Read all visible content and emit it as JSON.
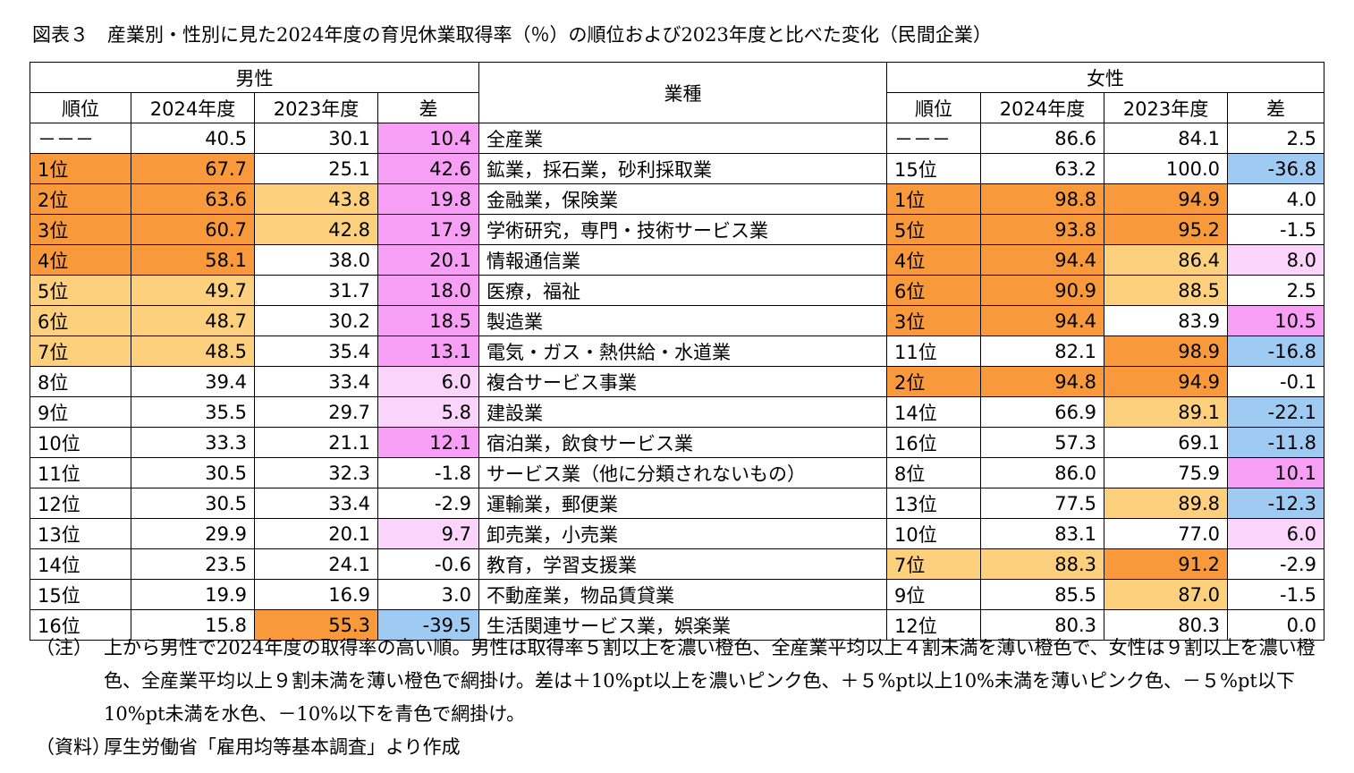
{
  "title": "図表３　産業別・性別に見た2024年度の育児休業取得率（％）の順位および2023年度と比べた変化（民間企業）",
  "headers": {
    "male": "男性",
    "female": "女性",
    "industry": "業種",
    "rank": "順位",
    "y2024": "2024年度",
    "y2023": "2023年度",
    "diff": "差"
  },
  "colors": {
    "dark": "#f89a3c",
    "light": "#fdd07e",
    "dpink": "#f79ef5",
    "lpink": "#fbd4fb",
    "lblue": "#c7e2f8",
    "blue": "#9fcbf2"
  },
  "rows": [
    {
      "m_rank": "－－－",
      "m_2024": "40.5",
      "m_2023": "30.1",
      "m_diff": "10.4",
      "industry": "全産業",
      "f_rank": "－－－",
      "f_2024": "86.6",
      "f_2023": "84.1",
      "f_diff": "2.5",
      "c": {
        "m_diff": "dpink"
      }
    },
    {
      "m_rank": "1位",
      "m_2024": "67.7",
      "m_2023": "25.1",
      "m_diff": "42.6",
      "industry": "鉱業，採石業，砂利採取業",
      "f_rank": "15位",
      "f_2024": "63.2",
      "f_2023": "100.0",
      "f_diff": "-36.8",
      "c": {
        "m_rank": "dark",
        "m_2024": "dark",
        "m_diff": "dpink",
        "f_diff": "blue"
      }
    },
    {
      "m_rank": "2位",
      "m_2024": "63.6",
      "m_2023": "43.8",
      "m_diff": "19.8",
      "industry": "金融業，保険業",
      "f_rank": "1位",
      "f_2024": "98.8",
      "f_2023": "94.9",
      "f_diff": "4.0",
      "c": {
        "m_rank": "dark",
        "m_2024": "dark",
        "m_2023": "light",
        "m_diff": "dpink",
        "f_rank": "dark",
        "f_2024": "dark",
        "f_2023": "dark"
      }
    },
    {
      "m_rank": "3位",
      "m_2024": "60.7",
      "m_2023": "42.8",
      "m_diff": "17.9",
      "industry": "学術研究，専門・技術サービス業",
      "f_rank": "5位",
      "f_2024": "93.8",
      "f_2023": "95.2",
      "f_diff": "-1.5",
      "c": {
        "m_rank": "dark",
        "m_2024": "dark",
        "m_2023": "light",
        "m_diff": "dpink",
        "f_rank": "dark",
        "f_2024": "dark",
        "f_2023": "dark"
      }
    },
    {
      "m_rank": "4位",
      "m_2024": "58.1",
      "m_2023": "38.0",
      "m_diff": "20.1",
      "industry": "情報通信業",
      "f_rank": "4位",
      "f_2024": "94.4",
      "f_2023": "86.4",
      "f_diff": "8.0",
      "c": {
        "m_rank": "dark",
        "m_2024": "dark",
        "m_diff": "dpink",
        "f_rank": "dark",
        "f_2024": "dark",
        "f_2023": "light",
        "f_diff": "lpink"
      }
    },
    {
      "m_rank": "5位",
      "m_2024": "49.7",
      "m_2023": "31.7",
      "m_diff": "18.0",
      "industry": "医療，福祉",
      "f_rank": "6位",
      "f_2024": "90.9",
      "f_2023": "88.5",
      "f_diff": "2.5",
      "c": {
        "m_rank": "light",
        "m_2024": "light",
        "m_diff": "dpink",
        "f_rank": "dark",
        "f_2024": "dark",
        "f_2023": "light"
      }
    },
    {
      "m_rank": "6位",
      "m_2024": "48.7",
      "m_2023": "30.2",
      "m_diff": "18.5",
      "industry": "製造業",
      "f_rank": "3位",
      "f_2024": "94.4",
      "f_2023": "83.9",
      "f_diff": "10.5",
      "c": {
        "m_rank": "light",
        "m_2024": "light",
        "m_diff": "dpink",
        "f_rank": "dark",
        "f_2024": "dark",
        "f_diff": "dpink"
      }
    },
    {
      "m_rank": "7位",
      "m_2024": "48.5",
      "m_2023": "35.4",
      "m_diff": "13.1",
      "industry": "電気・ガス・熱供給・水道業",
      "f_rank": "11位",
      "f_2024": "82.1",
      "f_2023": "98.9",
      "f_diff": "-16.8",
      "c": {
        "m_rank": "light",
        "m_2024": "light",
        "m_diff": "dpink",
        "f_2023": "dark",
        "f_diff": "blue"
      }
    },
    {
      "m_rank": "8位",
      "m_2024": "39.4",
      "m_2023": "33.4",
      "m_diff": "6.0",
      "industry": "複合サービス事業",
      "f_rank": "2位",
      "f_2024": "94.8",
      "f_2023": "94.9",
      "f_diff": "-0.1",
      "c": {
        "m_diff": "lpink",
        "f_rank": "dark",
        "f_2024": "dark",
        "f_2023": "dark"
      }
    },
    {
      "m_rank": "9位",
      "m_2024": "35.5",
      "m_2023": "29.7",
      "m_diff": "5.8",
      "industry": "建設業",
      "f_rank": "14位",
      "f_2024": "66.9",
      "f_2023": "89.1",
      "f_diff": "-22.1",
      "c": {
        "m_diff": "lpink",
        "f_2023": "light",
        "f_diff": "blue"
      }
    },
    {
      "m_rank": "10位",
      "m_2024": "33.3",
      "m_2023": "21.1",
      "m_diff": "12.1",
      "industry": "宿泊業，飲食サービス業",
      "f_rank": "16位",
      "f_2024": "57.3",
      "f_2023": "69.1",
      "f_diff": "-11.8",
      "c": {
        "m_diff": "dpink",
        "f_diff": "blue"
      }
    },
    {
      "m_rank": "11位",
      "m_2024": "30.5",
      "m_2023": "32.3",
      "m_diff": "-1.8",
      "industry": "サービス業（他に分類されないもの）",
      "f_rank": "8位",
      "f_2024": "86.0",
      "f_2023": "75.9",
      "f_diff": "10.1",
      "c": {
        "f_diff": "dpink"
      }
    },
    {
      "m_rank": "12位",
      "m_2024": "30.5",
      "m_2023": "33.4",
      "m_diff": "-2.9",
      "industry": "運輸業，郵便業",
      "f_rank": "13位",
      "f_2024": "77.5",
      "f_2023": "89.8",
      "f_diff": "-12.3",
      "c": {
        "f_2023": "light",
        "f_diff": "blue"
      }
    },
    {
      "m_rank": "13位",
      "m_2024": "29.9",
      "m_2023": "20.1",
      "m_diff": "9.7",
      "industry": "卸売業，小売業",
      "f_rank": "10位",
      "f_2024": "83.1",
      "f_2023": "77.0",
      "f_diff": "6.0",
      "c": {
        "m_diff": "lpink",
        "f_diff": "lpink"
      }
    },
    {
      "m_rank": "14位",
      "m_2024": "23.5",
      "m_2023": "24.1",
      "m_diff": "-0.6",
      "industry": "教育，学習支援業",
      "f_rank": "7位",
      "f_2024": "88.3",
      "f_2023": "91.2",
      "f_diff": "-2.9",
      "c": {
        "f_rank": "light",
        "f_2024": "light",
        "f_2023": "dark"
      }
    },
    {
      "m_rank": "15位",
      "m_2024": "19.9",
      "m_2023": "16.9",
      "m_diff": "3.0",
      "industry": "不動産業，物品賃貸業",
      "f_rank": "9位",
      "f_2024": "85.5",
      "f_2023": "87.0",
      "f_diff": "-1.5",
      "c": {
        "f_2023": "light"
      }
    },
    {
      "m_rank": "16位",
      "m_2024": "15.8",
      "m_2023": "55.3",
      "m_diff": "-39.5",
      "industry": "生活関連サービス業，娯楽業",
      "f_rank": "12位",
      "f_2024": "80.3",
      "f_2023": "80.3",
      "f_diff": "0.0",
      "c": {
        "m_2023": "dark",
        "m_diff": "blue"
      }
    }
  ],
  "notes": {
    "label": "（注）",
    "text": "上から男性で2024年度の取得率の高い順。男性は取得率５割以上を濃い橙色、全産業平均以上４割未満を薄い橙色で、女性は９割以上を濃い橙色、全産業平均以上９割未満を薄い橙色で網掛け。差は＋10%pt以上を濃いピンク色、＋５%pt以上10%未満を薄いピンク色、－５%pt以下10%pt未満を水色、－10%以下を青色で網掛け。",
    "source_label": "（資料）",
    "source_text": "厚生労働省「雇用均等基本調査」より作成"
  }
}
